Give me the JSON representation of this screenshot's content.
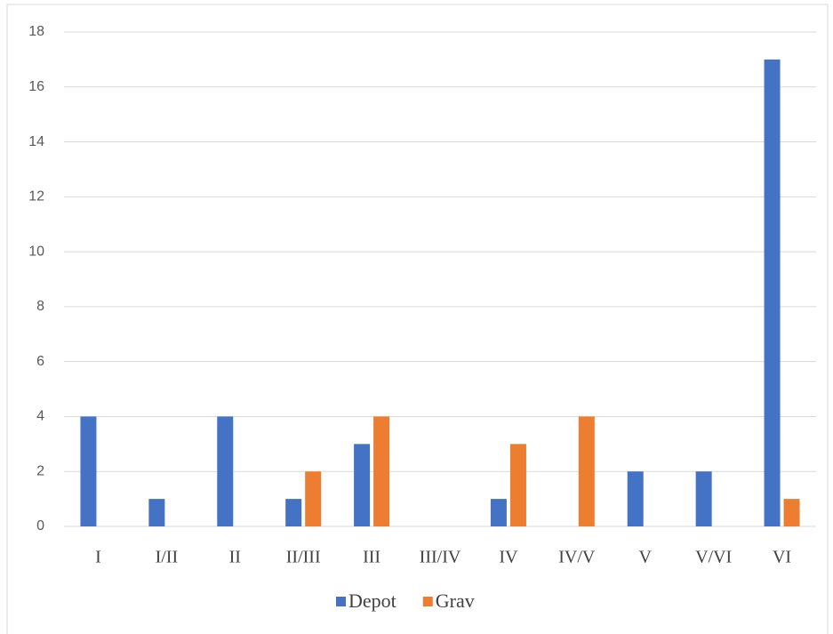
{
  "chart_data": {
    "type": "bar",
    "categories": [
      "I",
      "I/II",
      "II",
      "II/III",
      "III",
      "III/IV",
      "IV",
      "IV/V",
      "V",
      "V/VI",
      "VI"
    ],
    "series": [
      {
        "name": "Depot",
        "color": "#4472c4",
        "values": [
          4,
          1,
          4,
          1,
          3,
          0,
          1,
          0,
          2,
          2,
          17
        ]
      },
      {
        "name": "Grav",
        "color": "#ed7d31",
        "values": [
          0,
          0,
          0,
          2,
          4,
          0,
          3,
          4,
          0,
          0,
          1
        ]
      }
    ],
    "ylim": [
      0,
      18
    ],
    "yticks": [
      0,
      2,
      4,
      6,
      8,
      10,
      12,
      14,
      16,
      18
    ],
    "grid": true,
    "legend": "bottom"
  }
}
